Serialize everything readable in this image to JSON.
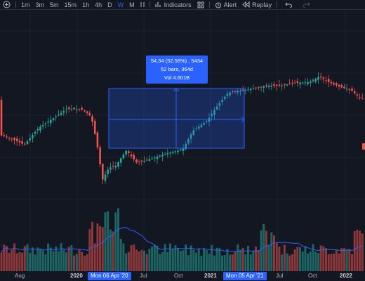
{
  "toolbar": {
    "intervals": [
      "1m",
      "3m",
      "5m",
      "15m",
      "1h",
      "4h",
      "D",
      "W",
      "M"
    ],
    "active_interval": "W",
    "indicators_label": "Indicators",
    "alert_label": "Alert",
    "replay_label": "Replay"
  },
  "measure": {
    "line1": "54.34 (52.56%) , 5434",
    "line2": "52 bars, 364d",
    "line3": "Vol 4.601B"
  },
  "x_axis": {
    "labels": [
      "Aug",
      "2020",
      "Jul",
      "Oct",
      "2021",
      "Jul",
      "Oct",
      "2022"
    ],
    "start_tag": "Mon 06 Apr '20",
    "end_tag": "Mon 05 Apr '21"
  },
  "colors": {
    "background": "#131722",
    "up": "#26a69a",
    "down": "#ef5350",
    "accent": "#2962ff",
    "volume_ma": "#2962ff"
  }
}
